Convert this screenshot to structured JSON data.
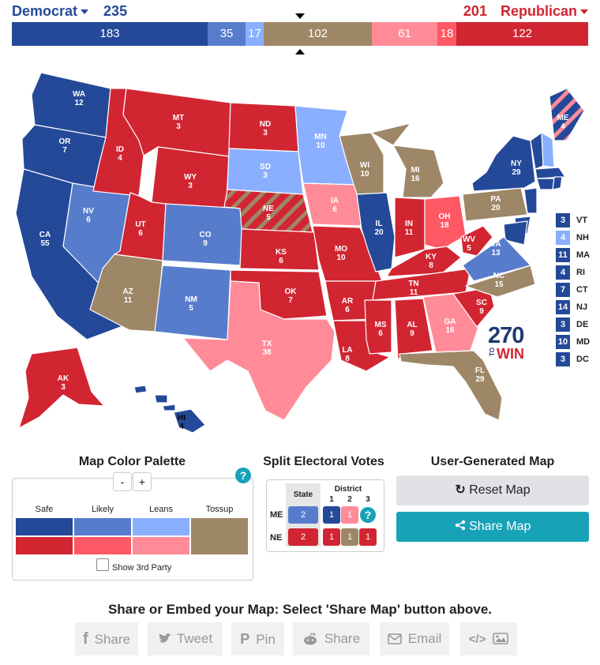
{
  "header": {
    "dem_label": "Democrat",
    "dem_total": "235",
    "rep_total": "201",
    "rep_label": "Republican",
    "segments": [
      {
        "value": "183",
        "color": "#244999"
      },
      {
        "value": "35",
        "color": "#577ccc"
      },
      {
        "value": "17",
        "color": "#8aafff"
      },
      {
        "value": "102",
        "color": "#9e8767"
      },
      {
        "value": "61",
        "color": "#ff8b98"
      },
      {
        "value": "18",
        "color": "#ff5865"
      },
      {
        "value": "122",
        "color": "#d22532"
      }
    ]
  },
  "colors": {
    "safe_dem": "#244999",
    "likely_dem": "#577ccc",
    "lean_dem": "#8aafff",
    "tossup": "#9e8767",
    "safe_rep": "#d22532",
    "likely_rep": "#ff5865",
    "lean_rep": "#ff8b98"
  },
  "map": {
    "states": [
      {
        "abbr": "WA",
        "ev": "12",
        "rating": "safe_dem"
      },
      {
        "abbr": "OR",
        "ev": "7",
        "rating": "safe_dem"
      },
      {
        "abbr": "CA",
        "ev": "55",
        "rating": "safe_dem"
      },
      {
        "abbr": "NV",
        "ev": "6",
        "rating": "likely_dem"
      },
      {
        "abbr": "ID",
        "ev": "4",
        "rating": "safe_rep"
      },
      {
        "abbr": "MT",
        "ev": "3",
        "rating": "safe_rep"
      },
      {
        "abbr": "WY",
        "ev": "3",
        "rating": "safe_rep"
      },
      {
        "abbr": "UT",
        "ev": "6",
        "rating": "safe_rep"
      },
      {
        "abbr": "AZ",
        "ev": "11",
        "rating": "tossup"
      },
      {
        "abbr": "CO",
        "ev": "9",
        "rating": "likely_dem"
      },
      {
        "abbr": "NM",
        "ev": "5",
        "rating": "likely_dem"
      },
      {
        "abbr": "ND",
        "ev": "3",
        "rating": "safe_rep"
      },
      {
        "abbr": "SD",
        "ev": "3",
        "rating": "lean_dem"
      },
      {
        "abbr": "NE",
        "ev": "5",
        "rating": "safe_rep"
      },
      {
        "abbr": "KS",
        "ev": "6",
        "rating": "safe_rep"
      },
      {
        "abbr": "OK",
        "ev": "7",
        "rating": "safe_rep"
      },
      {
        "abbr": "TX",
        "ev": "38",
        "rating": "lean_rep"
      },
      {
        "abbr": "MN",
        "ev": "10",
        "rating": "lean_dem"
      },
      {
        "abbr": "IA",
        "ev": "6",
        "rating": "lean_rep"
      },
      {
        "abbr": "MO",
        "ev": "10",
        "rating": "safe_rep"
      },
      {
        "abbr": "AR",
        "ev": "6",
        "rating": "safe_rep"
      },
      {
        "abbr": "LA",
        "ev": "8",
        "rating": "safe_rep"
      },
      {
        "abbr": "WI",
        "ev": "10",
        "rating": "tossup"
      },
      {
        "abbr": "IL",
        "ev": "20",
        "rating": "safe_dem"
      },
      {
        "abbr": "MI",
        "ev": "16",
        "rating": "tossup"
      },
      {
        "abbr": "IN",
        "ev": "11",
        "rating": "safe_rep"
      },
      {
        "abbr": "OH",
        "ev": "18",
        "rating": "likely_rep"
      },
      {
        "abbr": "KY",
        "ev": "8",
        "rating": "safe_rep"
      },
      {
        "abbr": "TN",
        "ev": "11",
        "rating": "safe_rep"
      },
      {
        "abbr": "MS",
        "ev": "6",
        "rating": "safe_rep"
      },
      {
        "abbr": "AL",
        "ev": "9",
        "rating": "safe_rep"
      },
      {
        "abbr": "GA",
        "ev": "16",
        "rating": "lean_rep"
      },
      {
        "abbr": "FL",
        "ev": "29",
        "rating": "tossup"
      },
      {
        "abbr": "SC",
        "ev": "9",
        "rating": "safe_rep"
      },
      {
        "abbr": "NC",
        "ev": "15",
        "rating": "tossup"
      },
      {
        "abbr": "VA",
        "ev": "13",
        "rating": "likely_dem"
      },
      {
        "abbr": "WV",
        "ev": "5",
        "rating": "safe_rep"
      },
      {
        "abbr": "PA",
        "ev": "20",
        "rating": "tossup"
      },
      {
        "abbr": "NY",
        "ev": "29",
        "rating": "safe_dem"
      },
      {
        "abbr": "ME",
        "ev": "4",
        "rating": "safe_dem"
      },
      {
        "abbr": "AK",
        "ev": "3",
        "rating": "safe_rep"
      },
      {
        "abbr": "HI",
        "ev": "4",
        "rating": "safe_dem"
      }
    ],
    "small_states": [
      {
        "abbr": "VT",
        "ev": "3",
        "rating": "safe_dem"
      },
      {
        "abbr": "NH",
        "ev": "4",
        "rating": "lean_dem"
      },
      {
        "abbr": "MA",
        "ev": "11",
        "rating": "safe_dem"
      },
      {
        "abbr": "RI",
        "ev": "4",
        "rating": "safe_dem"
      },
      {
        "abbr": "CT",
        "ev": "7",
        "rating": "safe_dem"
      },
      {
        "abbr": "NJ",
        "ev": "14",
        "rating": "safe_dem"
      },
      {
        "abbr": "DE",
        "ev": "3",
        "rating": "safe_dem"
      },
      {
        "abbr": "MD",
        "ev": "10",
        "rating": "safe_dem"
      },
      {
        "abbr": "DC",
        "ev": "3",
        "rating": "safe_dem"
      }
    ],
    "logo_number": "270",
    "logo_small": "TO",
    "logo_word": "WIN"
  },
  "palette": {
    "title": "Map Color Palette",
    "minus": "-",
    "plus": "+",
    "help": "?",
    "headers": [
      "Safe",
      "Likely",
      "Leans",
      "Tossup"
    ],
    "third_party_label": "Show 3rd Party"
  },
  "split": {
    "title": "Split Electoral Votes",
    "state_header": "State",
    "district_header": "District",
    "district_numbers": [
      "1",
      "2",
      "3"
    ],
    "rows": [
      {
        "state": "ME",
        "total": "2",
        "districts": [
          "1",
          "1"
        ]
      },
      {
        "state": "NE",
        "total": "2",
        "districts": [
          "1",
          "1",
          "1"
        ]
      }
    ],
    "help": "?"
  },
  "user_map": {
    "title": "User-Generated Map",
    "reset_label": "Reset Map",
    "share_label": "Share Map"
  },
  "share_bar": {
    "heading": "Share or Embed your Map: Select 'Share Map' button above.",
    "buttons": [
      "Share",
      "Tweet",
      "Pin",
      "Share",
      "Email"
    ]
  }
}
